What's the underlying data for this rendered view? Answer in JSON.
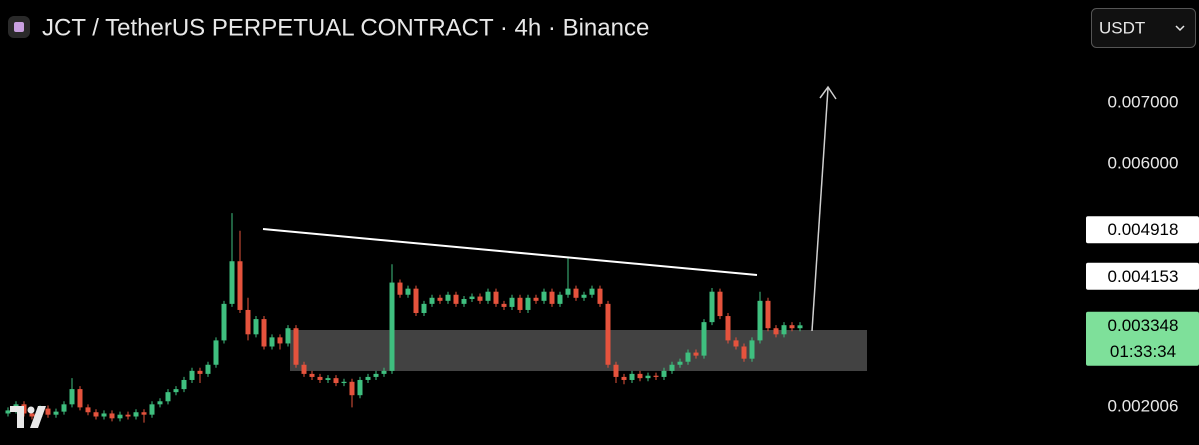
{
  "chart_data": {
    "type": "candlestick",
    "title": "JCT / TetherUS PERPETUAL CONTRACT · 4h · Binance",
    "currency": "USDT",
    "up_color": "#3fbf7f",
    "down_color": "#e5533d",
    "ylim": [
      0.001382,
      0.008691
    ],
    "yticks": [
      {
        "value": 0.007,
        "label": "0.007000"
      },
      {
        "value": 0.006,
        "label": "0.006000"
      },
      0.002006
    ],
    "price_labels": [
      {
        "value": 0.004918,
        "color": "#ffffff",
        "text_color": "#000000"
      },
      {
        "value": 0.004153,
        "color": "#ffffff",
        "text_color": "#000000"
      },
      {
        "value": 0.003348,
        "color": "#7ee09a",
        "text_color": "#000000",
        "countdown": "01:33:34"
      }
    ],
    "ohlc": [
      [
        0.0019,
        0.002,
        0.00185,
        0.00195
      ],
      [
        0.00195,
        0.0021,
        0.0019,
        0.00205
      ],
      [
        0.00205,
        0.0021,
        0.00185,
        0.0019
      ],
      [
        0.0019,
        0.00195,
        0.0018,
        0.00185
      ],
      [
        0.00185,
        0.00203,
        0.0018,
        0.00198
      ],
      [
        0.00198,
        0.00203,
        0.00183,
        0.00188
      ],
      [
        0.00188,
        0.00198,
        0.00183,
        0.00193
      ],
      [
        0.00193,
        0.0021,
        0.00188,
        0.00205
      ],
      [
        0.00205,
        0.00248,
        0.002,
        0.0023
      ],
      [
        0.0023,
        0.00235,
        0.00195,
        0.002
      ],
      [
        0.002,
        0.00205,
        0.00187,
        0.00192
      ],
      [
        0.00192,
        0.00197,
        0.0018,
        0.00185
      ],
      [
        0.00185,
        0.00195,
        0.0018,
        0.0019
      ],
      [
        0.0019,
        0.00195,
        0.00177,
        0.00182
      ],
      [
        0.00182,
        0.00193,
        0.00177,
        0.00188
      ],
      [
        0.00188,
        0.00193,
        0.0018,
        0.00185
      ],
      [
        0.00185,
        0.00197,
        0.0018,
        0.00192
      ],
      [
        0.00192,
        0.00197,
        0.00175,
        0.00188
      ],
      [
        0.00188,
        0.0021,
        0.00183,
        0.00205
      ],
      [
        0.00205,
        0.00215,
        0.002,
        0.0021
      ],
      [
        0.0021,
        0.0023,
        0.00205,
        0.00225
      ],
      [
        0.00225,
        0.00235,
        0.0022,
        0.0023
      ],
      [
        0.0023,
        0.0025,
        0.00225,
        0.00245
      ],
      [
        0.00245,
        0.00265,
        0.0024,
        0.0026
      ],
      [
        0.0026,
        0.00265,
        0.0024,
        0.00255
      ],
      [
        0.00255,
        0.00275,
        0.0025,
        0.0027
      ],
      [
        0.0027,
        0.00315,
        0.00265,
        0.0031
      ],
      [
        0.0031,
        0.00375,
        0.00305,
        0.0037
      ],
      [
        0.0037,
        0.00519,
        0.00365,
        0.0044
      ],
      [
        0.0044,
        0.0049,
        0.00355,
        0.0036
      ],
      [
        0.0036,
        0.0038,
        0.0031,
        0.0032
      ],
      [
        0.0032,
        0.0035,
        0.00315,
        0.00345
      ],
      [
        0.00345,
        0.0035,
        0.00295,
        0.003
      ],
      [
        0.003,
        0.0032,
        0.00295,
        0.00315
      ],
      [
        0.00315,
        0.0032,
        0.00295,
        0.00305
      ],
      [
        0.00305,
        0.00335,
        0.003,
        0.0033
      ],
      [
        0.0033,
        0.00335,
        0.00265,
        0.0027
      ],
      [
        0.0027,
        0.00275,
        0.0025,
        0.00255
      ],
      [
        0.00255,
        0.0026,
        0.00245,
        0.0025
      ],
      [
        0.0025,
        0.00255,
        0.0024,
        0.00245
      ],
      [
        0.00245,
        0.00253,
        0.0024,
        0.00248
      ],
      [
        0.00248,
        0.00253,
        0.00235,
        0.0024
      ],
      [
        0.0024,
        0.00247,
        0.00235,
        0.00242
      ],
      [
        0.00242,
        0.00247,
        0.002,
        0.0022
      ],
      [
        0.0022,
        0.0025,
        0.00215,
        0.00245
      ],
      [
        0.00245,
        0.00255,
        0.0024,
        0.0025
      ],
      [
        0.0025,
        0.0026,
        0.00245,
        0.00255
      ],
      [
        0.00255,
        0.00265,
        0.0025,
        0.0026
      ],
      [
        0.0026,
        0.00435,
        0.00255,
        0.00405
      ],
      [
        0.00405,
        0.0041,
        0.0038,
        0.00385
      ],
      [
        0.00385,
        0.004,
        0.0038,
        0.00395
      ],
      [
        0.00395,
        0.004,
        0.0035,
        0.00355
      ],
      [
        0.00355,
        0.00375,
        0.0035,
        0.0037
      ],
      [
        0.0037,
        0.00385,
        0.00365,
        0.0038
      ],
      [
        0.0038,
        0.00385,
        0.0037,
        0.00375
      ],
      [
        0.00375,
        0.0039,
        0.0037,
        0.00385
      ],
      [
        0.00385,
        0.0039,
        0.00365,
        0.0037
      ],
      [
        0.0037,
        0.00383,
        0.00365,
        0.00378
      ],
      [
        0.00378,
        0.00387,
        0.00373,
        0.00382
      ],
      [
        0.00382,
        0.00387,
        0.0037,
        0.00375
      ],
      [
        0.00375,
        0.00395,
        0.0037,
        0.0039
      ],
      [
        0.0039,
        0.00395,
        0.00365,
        0.0037
      ],
      [
        0.0037,
        0.00375,
        0.0036,
        0.00365
      ],
      [
        0.00365,
        0.00385,
        0.0036,
        0.0038
      ],
      [
        0.0038,
        0.00385,
        0.00355,
        0.0036
      ],
      [
        0.0036,
        0.00385,
        0.00355,
        0.0038
      ],
      [
        0.0038,
        0.00385,
        0.0037,
        0.00375
      ],
      [
        0.00375,
        0.00395,
        0.0037,
        0.0039
      ],
      [
        0.0039,
        0.00395,
        0.00365,
        0.0037
      ],
      [
        0.0037,
        0.0039,
        0.00365,
        0.00385
      ],
      [
        0.00385,
        0.00445,
        0.0038,
        0.00395
      ],
      [
        0.00395,
        0.004,
        0.00375,
        0.0038
      ],
      [
        0.0038,
        0.0039,
        0.00375,
        0.00385
      ],
      [
        0.00385,
        0.004,
        0.0038,
        0.00395
      ],
      [
        0.00395,
        0.004,
        0.00365,
        0.0037
      ],
      [
        0.0037,
        0.00375,
        0.00265,
        0.0027
      ],
      [
        0.0027,
        0.00275,
        0.0024,
        0.0025
      ],
      [
        0.0025,
        0.00255,
        0.00238,
        0.00245
      ],
      [
        0.00245,
        0.0026,
        0.0024,
        0.00255
      ],
      [
        0.00255,
        0.0026,
        0.00243,
        0.00248
      ],
      [
        0.00248,
        0.00257,
        0.00243,
        0.00252
      ],
      [
        0.00252,
        0.00257,
        0.00245,
        0.0025
      ],
      [
        0.0025,
        0.00265,
        0.00245,
        0.0026
      ],
      [
        0.0026,
        0.00275,
        0.00255,
        0.0027
      ],
      [
        0.0027,
        0.0028,
        0.00265,
        0.00275
      ],
      [
        0.00275,
        0.00295,
        0.0027,
        0.0029
      ],
      [
        0.0029,
        0.00295,
        0.0028,
        0.00285
      ],
      [
        0.00285,
        0.00345,
        0.0028,
        0.0034
      ],
      [
        0.0034,
        0.00396,
        0.00335,
        0.0039
      ],
      [
        0.0039,
        0.00395,
        0.00345,
        0.0035
      ],
      [
        0.0035,
        0.00355,
        0.00305,
        0.0031
      ],
      [
        0.0031,
        0.00315,
        0.00295,
        0.003
      ],
      [
        0.003,
        0.00305,
        0.00275,
        0.0028
      ],
      [
        0.0028,
        0.00315,
        0.00275,
        0.0031
      ],
      [
        0.0031,
        0.0039,
        0.00305,
        0.00375
      ],
      [
        0.00375,
        0.0038,
        0.00325,
        0.0033
      ],
      [
        0.0033,
        0.00335,
        0.00315,
        0.0032
      ],
      [
        0.0032,
        0.0034,
        0.00315,
        0.00335
      ],
      [
        0.00335,
        0.0034,
        0.00325,
        0.0033
      ],
      [
        0.0033,
        0.0034,
        0.00325,
        0.003348
      ]
    ]
  }
}
